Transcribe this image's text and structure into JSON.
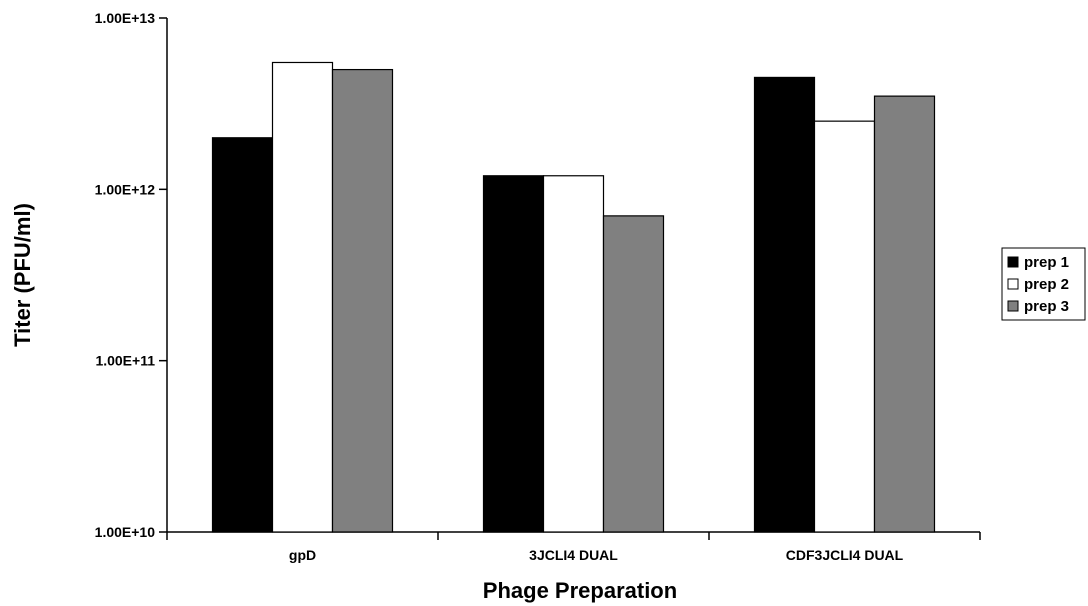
{
  "chart_data": {
    "type": "bar",
    "title": "",
    "xlabel": "Phage Preparation",
    "ylabel": "Titer (PFU/ml)",
    "yscale": "log",
    "ylim": [
      10000000000.0,
      10000000000000.0
    ],
    "yticks": [
      10000000000.0,
      100000000000.0,
      1000000000000.0,
      10000000000000.0
    ],
    "ytick_labels": [
      "1.00E+10",
      "1.00E+11",
      "1.00E+12",
      "1.00E+13"
    ],
    "categories": [
      "gpD",
      "3JCLI4 DUAL",
      "CDF3JCLI4 DUAL"
    ],
    "series": [
      {
        "name": "prep 1",
        "color": "#000000",
        "values": [
          2000000000000.0,
          1200000000000.0,
          4500000000000.0
        ]
      },
      {
        "name": "prep 2",
        "color": "#ffffff",
        "values": [
          5500000000000.0,
          1200000000000.0,
          2500000000000.0
        ]
      },
      {
        "name": "prep 3",
        "color": "#808080",
        "values": [
          5000000000000.0,
          700000000000.0,
          3500000000000.0
        ]
      }
    ],
    "grid": false,
    "legend": "right"
  }
}
